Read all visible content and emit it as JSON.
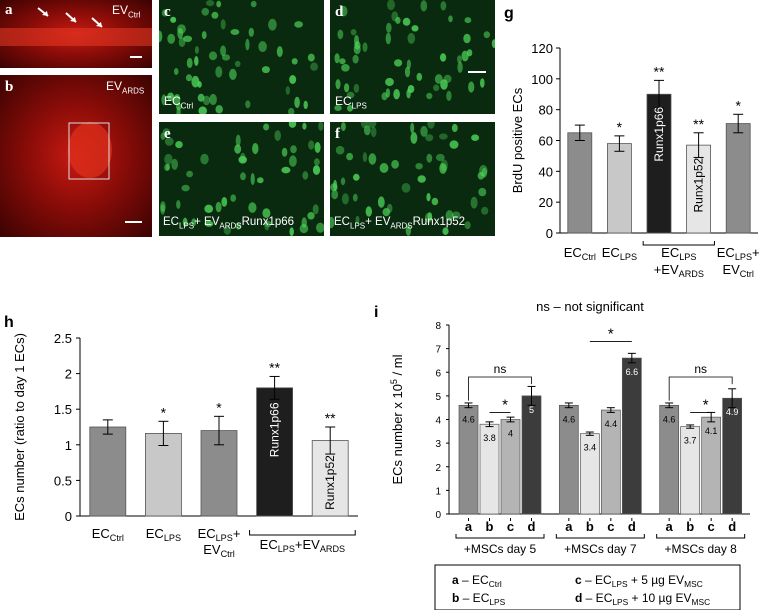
{
  "panels": {
    "a": {
      "letter": "a",
      "label_main": "EV",
      "label_sub": "Ctrl"
    },
    "b": {
      "letter": "b",
      "label_main": "EV",
      "label_sub": "ARDS"
    },
    "c": {
      "letter": "c",
      "label_main": "EC",
      "label_sub": "Ctrl"
    },
    "d": {
      "letter": "d",
      "label_main": "EC",
      "label_sub": "LPS"
    },
    "e": {
      "letter": "e",
      "label_main": "EC",
      "label_sub": "LPS",
      "label_plus": "+ EV",
      "label_sub2": "ARDS",
      "label_tail": "Runx1p66"
    },
    "f": {
      "letter": "f",
      "label_main": "EC",
      "label_sub": "LPS",
      "label_plus": "+ EV",
      "label_sub2": "ARDS",
      "label_tail": "Runx1p52"
    }
  },
  "chart_data": [
    {
      "id": "g",
      "type": "bar",
      "letter": "g",
      "ylabel": "BrdU positive ECs",
      "ylim": [
        0,
        120
      ],
      "yticks": [
        0,
        20,
        40,
        60,
        80,
        100,
        120
      ],
      "bars": [
        {
          "value": 65,
          "err": 5,
          "sig": "",
          "inside": "",
          "color": "#8c8c8c"
        },
        {
          "value": 58,
          "err": 5,
          "sig": "*",
          "inside": "",
          "color": "#c8c8c8"
        },
        {
          "value": 90,
          "err": 9,
          "sig": "**",
          "inside": "Runx1p66",
          "color": "#1e1e1e"
        },
        {
          "value": 57,
          "err": 8,
          "sig": "**",
          "inside": "Runx1p52",
          "color": "#e6e6e6"
        },
        {
          "value": 71,
          "err": 6,
          "sig": "*",
          "inside": "",
          "color": "#8c8c8c"
        }
      ],
      "xlabels": [
        {
          "main": "EC",
          "sub": "Ctrl"
        },
        {
          "main": "EC",
          "sub": "LPS"
        },
        {
          "main": "EC",
          "sub": "LPS",
          "line2": "+EV",
          "line2sub": "ARDS"
        },
        {
          "main": "EC",
          "sub": "LPS",
          "tail": "+",
          "line2": "EV",
          "line2sub": "Ctrl"
        }
      ]
    },
    {
      "id": "h",
      "type": "bar",
      "letter": "h",
      "ylabel": "ECs number (ratio to day 1 ECs)",
      "ylim": [
        0,
        2.5
      ],
      "yticks": [
        "0",
        "0.5",
        "1",
        "1.5",
        "2",
        "2.5"
      ],
      "bars": [
        {
          "value": 1.25,
          "err": 0.1,
          "sig": "",
          "inside": "",
          "color": "#8c8c8c"
        },
        {
          "value": 1.16,
          "err": 0.17,
          "sig": "*",
          "inside": "",
          "color": "#c8c8c8"
        },
        {
          "value": 1.2,
          "err": 0.2,
          "sig": "*",
          "inside": "",
          "color": "#8c8c8c"
        },
        {
          "value": 1.8,
          "err": 0.16,
          "sig": "**",
          "inside": "Runx1p66",
          "color": "#1e1e1e"
        },
        {
          "value": 1.06,
          "err": 0.19,
          "sig": "**",
          "inside": "Runx1p52",
          "color": "#e6e6e6"
        }
      ],
      "xlabels": [
        {
          "main": "EC",
          "sub": "Ctrl"
        },
        {
          "main": "EC",
          "sub": "LPS"
        },
        {
          "main": "EC",
          "sub": "LPS",
          "tail": "+",
          "line2": "EV",
          "line2sub": "Ctrl"
        },
        {
          "main": "EC",
          "sub": "LPS",
          "tail": "+EV",
          "tailsub": "ARDS"
        }
      ]
    },
    {
      "id": "i",
      "type": "bar",
      "letter": "i",
      "title": "ns – not significant",
      "ylabel_pre": "ECs number x 10",
      "ylabel_sup": "5",
      "ylabel_post": " / ml",
      "ylim": [
        0,
        8
      ],
      "yticks": [
        0,
        1,
        2,
        3,
        4,
        5,
        6,
        7,
        8
      ],
      "groups": [
        {
          "label": "+MSCs day 5",
          "values": [
            4.6,
            3.8,
            4,
            5
          ],
          "errs": [
            0.1,
            0.1,
            0.1,
            0.4
          ],
          "value_labels": [
            "4.6",
            "3.8",
            "4",
            "5"
          ]
        },
        {
          "label": "+MSCs day 7",
          "values": [
            4.6,
            3.4,
            4.4,
            6.6
          ],
          "errs": [
            0.1,
            0.07,
            0.1,
            0.2
          ],
          "value_labels": [
            "4.6",
            "3.4",
            "4.4",
            "6.6"
          ]
        },
        {
          "label": "+MSCs day 8",
          "values": [
            4.6,
            3.7,
            4.1,
            4.9
          ],
          "errs": [
            0.1,
            0.07,
            0.2,
            0.4
          ],
          "value_labels": [
            "4.6",
            "3.7",
            "4.1",
            "4.9"
          ]
        }
      ],
      "series_letters": [
        "a",
        "b",
        "c",
        "d"
      ],
      "series_colors": [
        "#8c8c8c",
        "#e6e6e6",
        "#b4b4b4",
        "#3c3c3c"
      ],
      "ns_label": "ns",
      "star": "*",
      "legend": [
        {
          "letter": "a",
          "text_main": " – EC",
          "text_sub": "Ctrl",
          "text_tail": ""
        },
        {
          "letter": "b",
          "text_main": " – EC",
          "text_sub": "LPS",
          "text_tail": ""
        },
        {
          "letter": "c",
          "text_main": " – EC",
          "text_sub": "LPS",
          "text_tail": " + 5 µg EV",
          "tail_sub": "MSC"
        },
        {
          "letter": "d",
          "text_main": " – EC",
          "text_sub": "LPS",
          "text_tail": " + 10 µg EV",
          "tail_sub": "MSC"
        }
      ]
    }
  ]
}
